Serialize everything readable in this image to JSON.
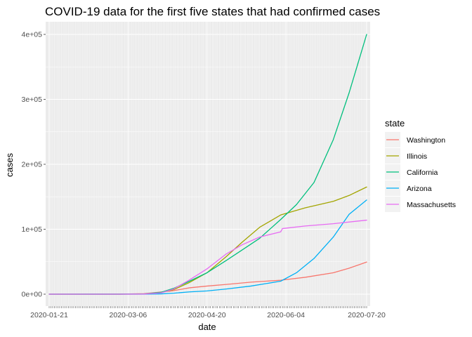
{
  "chart_data": {
    "type": "line",
    "title": "COVID-19 data for the first five states that had confirmed cases",
    "xlabel": "date",
    "ylabel": "cases",
    "x_range": [
      "2020-01-21",
      "2020-07-20"
    ],
    "ylim": [
      0,
      400000
    ],
    "x_ticks": [
      "2020-01-21",
      "2020-03-06",
      "2020-04-20",
      "2020-06-04",
      "2020-07-20"
    ],
    "y_ticks": [
      {
        "value": 0,
        "label": "0e+00"
      },
      {
        "value": 100000,
        "label": "1e+05"
      },
      {
        "value": 200000,
        "label": "2e+05"
      },
      {
        "value": 300000,
        "label": "3e+05"
      },
      {
        "value": 400000,
        "label": "4e+05"
      }
    ],
    "grid": true,
    "background": "#ebebeb",
    "legend": {
      "title": "state",
      "placement": "right"
    },
    "series": [
      {
        "name": "Washington",
        "color": "#F8766D",
        "points": [
          [
            "2020-01-21",
            1
          ],
          [
            "2020-03-01",
            50
          ],
          [
            "2020-03-15",
            800
          ],
          [
            "2020-03-31",
            5000
          ],
          [
            "2020-04-10",
            9800
          ],
          [
            "2020-04-20",
            12500
          ],
          [
            "2020-05-01",
            15000
          ],
          [
            "2020-05-15",
            18500
          ],
          [
            "2020-06-01",
            21500
          ],
          [
            "2020-06-15",
            26000
          ],
          [
            "2020-07-01",
            33000
          ],
          [
            "2020-07-10",
            40000
          ],
          [
            "2020-07-20",
            49500
          ]
        ]
      },
      {
        "name": "Illinois",
        "color": "#A3A500",
        "points": [
          [
            "2020-01-21",
            0
          ],
          [
            "2020-03-01",
            5
          ],
          [
            "2020-03-15",
            100
          ],
          [
            "2020-03-25",
            2500
          ],
          [
            "2020-04-01",
            7000
          ],
          [
            "2020-04-10",
            18000
          ],
          [
            "2020-04-20",
            33000
          ],
          [
            "2020-05-01",
            58000
          ],
          [
            "2020-05-10",
            80000
          ],
          [
            "2020-05-20",
            103000
          ],
          [
            "2020-06-01",
            122000
          ],
          [
            "2020-06-15",
            133000
          ],
          [
            "2020-07-01",
            143000
          ],
          [
            "2020-07-10",
            152000
          ],
          [
            "2020-07-20",
            165000
          ]
        ]
      },
      {
        "name": "California",
        "color": "#00BF7D",
        "points": [
          [
            "2020-01-21",
            0
          ],
          [
            "2020-03-01",
            80
          ],
          [
            "2020-03-15",
            400
          ],
          [
            "2020-03-25",
            3000
          ],
          [
            "2020-04-01",
            9000
          ],
          [
            "2020-04-10",
            20000
          ],
          [
            "2020-04-20",
            33000
          ],
          [
            "2020-05-01",
            52000
          ],
          [
            "2020-05-10",
            68000
          ],
          [
            "2020-05-20",
            86000
          ],
          [
            "2020-06-01",
            115000
          ],
          [
            "2020-06-10",
            138000
          ],
          [
            "2020-06-20",
            172000
          ],
          [
            "2020-07-01",
            238000
          ],
          [
            "2020-07-10",
            310000
          ],
          [
            "2020-07-20",
            400000
          ]
        ]
      },
      {
        "name": "Arizona",
        "color": "#00B0F6",
        "points": [
          [
            "2020-01-21",
            1
          ],
          [
            "2020-03-01",
            1
          ],
          [
            "2020-03-15",
            15
          ],
          [
            "2020-03-25",
            500
          ],
          [
            "2020-04-01",
            1500
          ],
          [
            "2020-04-10",
            3500
          ],
          [
            "2020-04-20",
            5000
          ],
          [
            "2020-05-01",
            8000
          ],
          [
            "2020-05-15",
            12500
          ],
          [
            "2020-06-01",
            20000
          ],
          [
            "2020-06-10",
            33000
          ],
          [
            "2020-06-20",
            55000
          ],
          [
            "2020-07-01",
            88000
          ],
          [
            "2020-07-10",
            123000
          ],
          [
            "2020-07-20",
            145000
          ]
        ]
      },
      {
        "name": "Massachusetts",
        "color": "#E76BF3",
        "points": [
          [
            "2020-01-21",
            0
          ],
          [
            "2020-03-01",
            1
          ],
          [
            "2020-03-15",
            200
          ],
          [
            "2020-03-25",
            2000
          ],
          [
            "2020-04-01",
            8000
          ],
          [
            "2020-04-10",
            22000
          ],
          [
            "2020-04-20",
            39000
          ],
          [
            "2020-05-01",
            62000
          ],
          [
            "2020-05-10",
            76000
          ],
          [
            "2020-05-20",
            88000
          ],
          [
            "2020-06-01",
            96000
          ],
          [
            "2020-06-02",
            101000
          ],
          [
            "2020-06-15",
            105000
          ],
          [
            "2020-07-01",
            108500
          ],
          [
            "2020-07-20",
            114000
          ]
        ]
      }
    ]
  }
}
